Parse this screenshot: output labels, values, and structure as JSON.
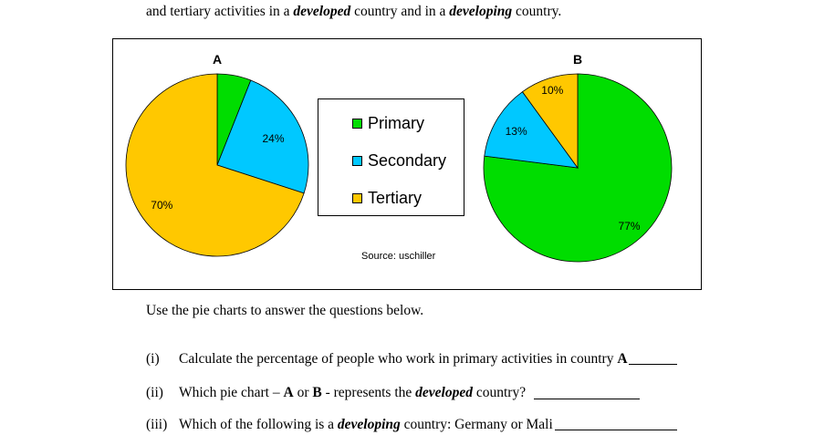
{
  "intro": {
    "line2_prefix": "and tertiary activities in a ",
    "developed": "developed",
    "line2_middle": " country and in a ",
    "developing": "developing",
    "line2_suffix": " country."
  },
  "legend": {
    "items": [
      {
        "label": "Primary",
        "color": "#00dd00"
      },
      {
        "label": "Secondary",
        "color": "#00c8ff"
      },
      {
        "label": "Tertiary",
        "color": "#ffc800"
      }
    ]
  },
  "source": "Source: uschiller",
  "chart_data": [
    {
      "type": "pie",
      "title": "A",
      "categories": [
        "Primary",
        "Secondary",
        "Tertiary"
      ],
      "values": [
        6,
        24,
        70
      ],
      "labels": [
        "",
        "24%",
        "70%"
      ],
      "colors": [
        "#00dd00",
        "#00c8ff",
        "#ffc800"
      ]
    },
    {
      "type": "pie",
      "title": "B",
      "categories": [
        "Primary",
        "Secondary",
        "Tertiary"
      ],
      "values": [
        77,
        13,
        10
      ],
      "labels": [
        "77%",
        "13%",
        "10%"
      ],
      "colors": [
        "#00dd00",
        "#00c8ff",
        "#ffc800"
      ]
    }
  ],
  "prompt": "Use the pie charts to answer the questions below.",
  "questions": [
    {
      "num": "(i)",
      "text": "Calculate the percentage of people who work in primary activities in country ",
      "bold": "A"
    },
    {
      "num": "(ii)",
      "text_a": "Which pie chart – ",
      "bold1": "A",
      "text_b": " or ",
      "bold2": "B",
      "text_c": " - represents the ",
      "em": "developed",
      "text_d": " country?"
    },
    {
      "num": "(iii)",
      "text_a": "Which of the following is a ",
      "em": "developing",
      "text_b": " country: Germany or Mali"
    }
  ]
}
